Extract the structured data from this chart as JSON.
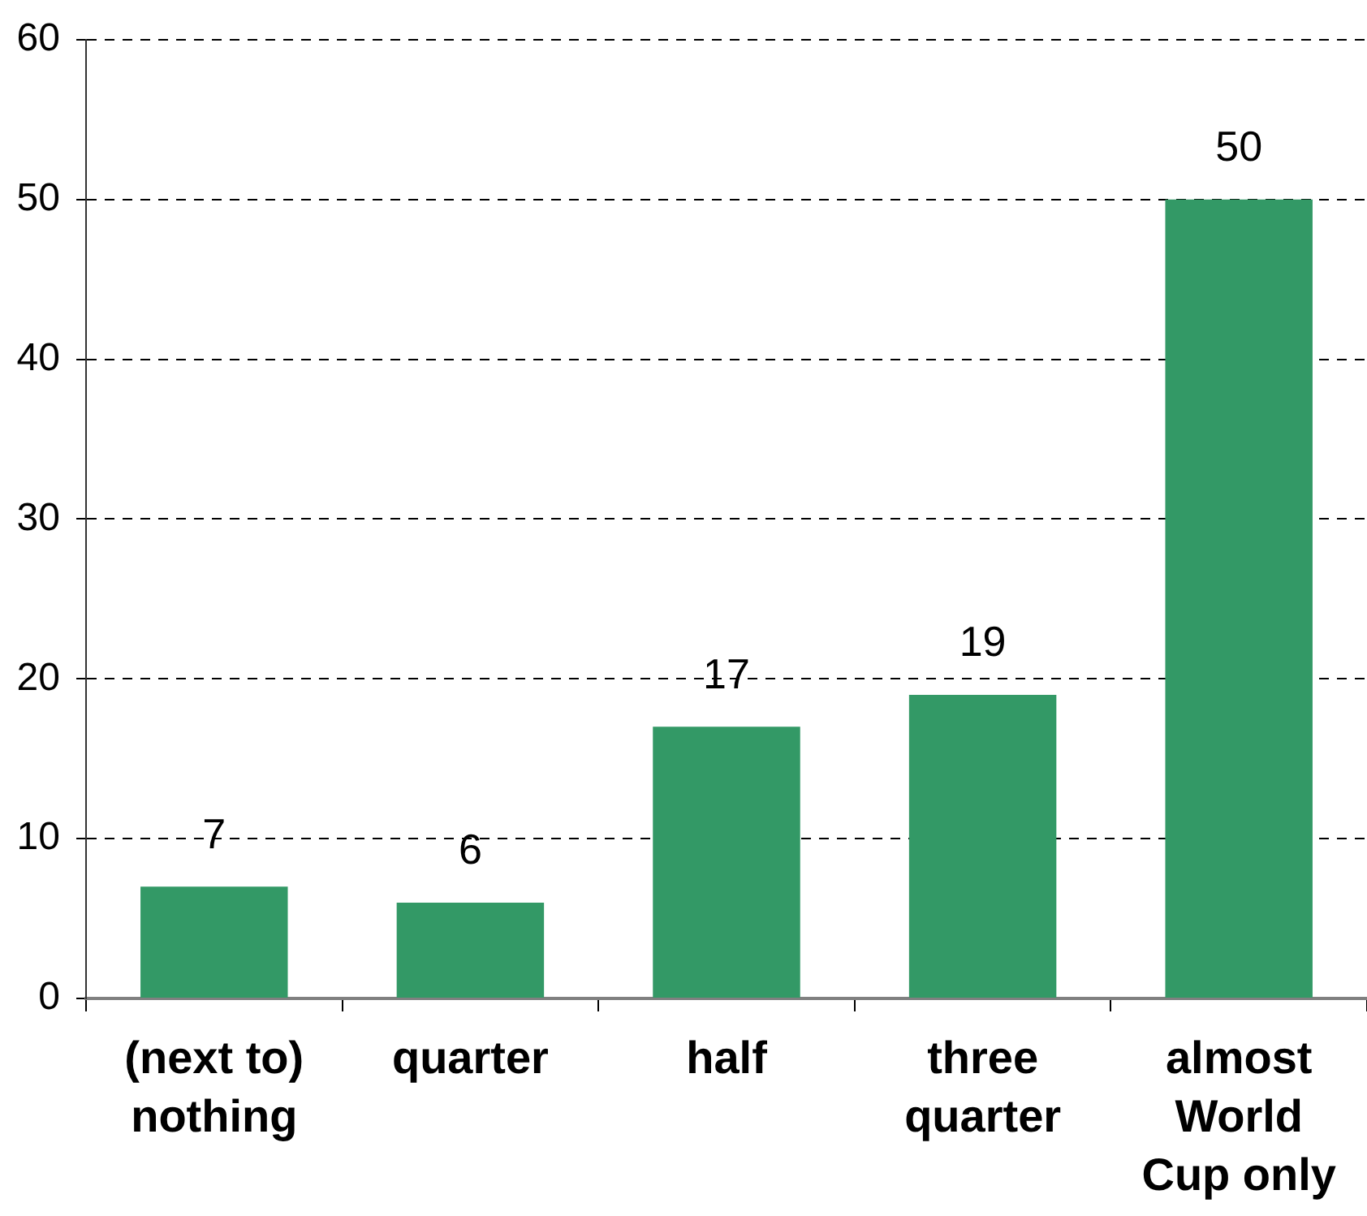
{
  "chart_data": {
    "type": "bar",
    "categories": [
      "(next to) nothing",
      "quarter",
      "half",
      "three quarter",
      "almost World Cup only"
    ],
    "values": [
      7,
      6,
      17,
      19,
      50
    ],
    "color": "#339966",
    "ylim": [
      0,
      60
    ],
    "yticks": [
      0,
      10,
      20,
      30,
      40,
      50,
      60
    ],
    "grid": "y",
    "data_labels": true
  }
}
